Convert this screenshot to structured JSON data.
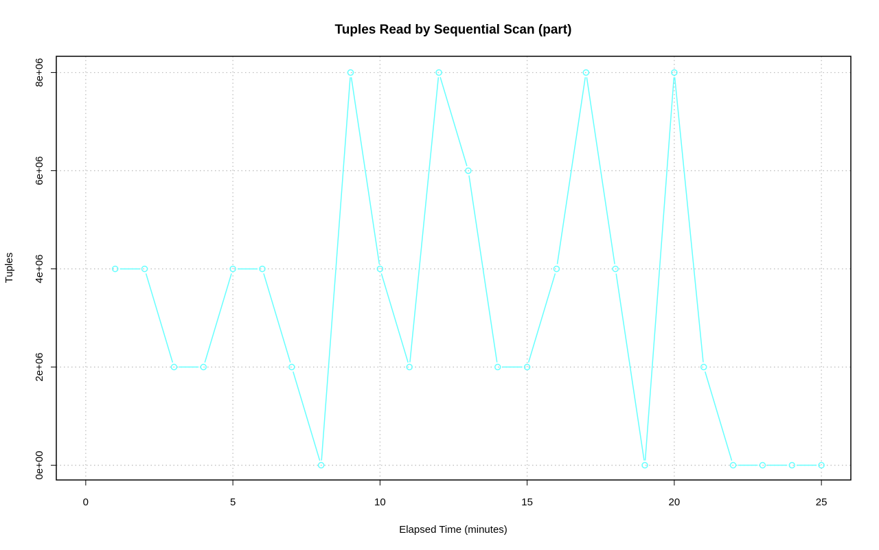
{
  "chart_data": {
    "type": "line",
    "title": "Tuples Read by Sequential Scan (part)",
    "xlabel": "Elapsed Time (minutes)",
    "ylabel": "Tuples",
    "xlim": [
      -1,
      26
    ],
    "ylim": [
      -300000,
      8330000
    ],
    "x_ticks": [
      0,
      5,
      10,
      15,
      20,
      25
    ],
    "x_tick_labels": [
      "0",
      "5",
      "10",
      "15",
      "20",
      "25"
    ],
    "y_ticks": [
      0,
      2000000,
      4000000,
      6000000,
      8000000
    ],
    "y_tick_labels": [
      "0e+00",
      "2e+06",
      "4e+06",
      "6e+06",
      "8e+06"
    ],
    "grid": true,
    "legend": "none",
    "colors": {
      "series": "#66ffff",
      "grid": "#bebebe",
      "frame": "#000000"
    },
    "series": [
      {
        "x": [
          1,
          2,
          3,
          4,
          5,
          6,
          7,
          8,
          9,
          10,
          11,
          12,
          13,
          14,
          15,
          16,
          17,
          18,
          19,
          20,
          21,
          22,
          23,
          24,
          25
        ],
        "y": [
          4000000,
          4000000,
          2000000,
          2000000,
          4000000,
          4000000,
          2000000,
          0,
          8000000,
          4000000,
          2000000,
          8000000,
          6000000,
          2000000,
          2000000,
          4000000,
          8000000,
          4000000,
          0,
          8000000,
          2000000,
          0,
          0,
          0,
          0
        ]
      }
    ]
  }
}
